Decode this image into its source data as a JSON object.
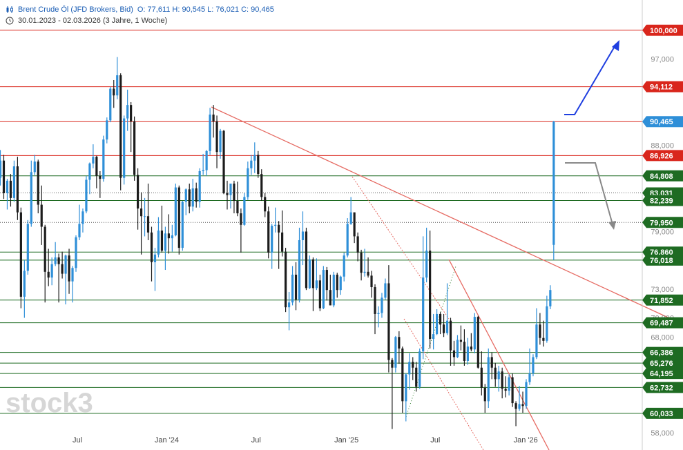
{
  "header": {
    "instrument": "Brent Crude Öl (JFD Brokers, Bid)",
    "ohlc": "O: 77,611   H: 90,545   L: 76,021   C: 90,465",
    "range": "30.01.2023 - 02.03.2026  (3 Jahre, 1 Woche)",
    "icons": [
      "candles-icon",
      "clock-icon"
    ]
  },
  "watermark": "stock3",
  "colors": {
    "up": "#2e8fd8",
    "down": "#1c1c1c",
    "resistance": "#d9261c",
    "support": "#1e6b22",
    "trendline": "#e66b63",
    "current": "#2e8fd8",
    "arrow_up": "#1f3fe0",
    "arrow_alt": "#777777"
  },
  "chart_data": {
    "type": "candlestick",
    "x_range": [
      "2023-01-30",
      "2026-03-02"
    ],
    "x_ticks": [
      "Jul",
      "Jan '24",
      "Jul",
      "Jan '25",
      "Jul",
      "Jan '26"
    ],
    "y_ticks": [
      "100,000",
      "97,000",
      "88,000",
      "79,000",
      "73,000",
      "70,000",
      "68,000",
      "58,000"
    ],
    "ylim": [
      56.5,
      102.0
    ],
    "price_levels": [
      {
        "label": "100,000",
        "value": 100.0,
        "kind": "resistance"
      },
      {
        "label": "94,112",
        "value": 94.112,
        "kind": "resistance"
      },
      {
        "label": "90,465",
        "value": 90.465,
        "kind": "current"
      },
      {
        "label": "86,926",
        "value": 86.926,
        "kind": "resistance"
      },
      {
        "label": "84,808",
        "value": 84.808,
        "kind": "support"
      },
      {
        "label": "83,031",
        "value": 83.031,
        "kind": "dotted"
      },
      {
        "label": "82,239",
        "value": 82.239,
        "kind": "support"
      },
      {
        "label": "79,950",
        "value": 79.95,
        "kind": "dotted"
      },
      {
        "label": "76,860",
        "value": 76.86,
        "kind": "support"
      },
      {
        "label": "76,018",
        "value": 76.018,
        "kind": "support"
      },
      {
        "label": "71,852",
        "value": 71.852,
        "kind": "support"
      },
      {
        "label": "69,487",
        "value": 69.487,
        "kind": "support"
      },
      {
        "label": "66,386",
        "value": 66.386,
        "kind": "support"
      },
      {
        "label": "65,276",
        "value": 65.276,
        "kind": "support"
      },
      {
        "label": "64,195",
        "value": 64.195,
        "kind": "support"
      },
      {
        "label": "62,732",
        "value": 62.732,
        "kind": "support"
      },
      {
        "label": "60,033",
        "value": 60.033,
        "kind": "support"
      }
    ],
    "candles": [
      [
        "2023-01-30",
        84.6,
        87.5,
        83.8,
        86.4
      ],
      [
        "2023-02-06",
        86.4,
        87.0,
        82.4,
        83.0
      ],
      [
        "2023-02-13",
        83.0,
        84.5,
        81.3,
        84.3
      ],
      [
        "2023-02-20",
        84.3,
        85.0,
        81.6,
        82.5
      ],
      [
        "2023-02-27",
        82.5,
        86.4,
        82.1,
        85.8
      ],
      [
        "2023-03-06",
        85.8,
        86.8,
        80.2,
        81.0
      ],
      [
        "2023-03-13",
        81.0,
        81.5,
        71.0,
        72.2
      ],
      [
        "2023-03-20",
        72.2,
        76.0,
        70.0,
        74.9
      ],
      [
        "2023-03-27",
        74.9,
        80.2,
        74.5,
        79.8
      ],
      [
        "2023-04-03",
        79.8,
        86.4,
        79.5,
        85.2
      ],
      [
        "2023-04-10",
        85.2,
        87.0,
        84.9,
        86.3
      ],
      [
        "2023-04-17",
        86.3,
        86.5,
        80.9,
        81.8
      ],
      [
        "2023-04-24",
        81.8,
        83.8,
        77.6,
        79.5
      ],
      [
        "2023-05-01",
        79.5,
        79.7,
        71.6,
        74.8
      ],
      [
        "2023-05-08",
        74.8,
        77.2,
        73.3,
        74.2
      ],
      [
        "2023-05-15",
        74.2,
        76.3,
        73.4,
        75.6
      ],
      [
        "2023-05-22",
        75.6,
        77.9,
        75.4,
        76.3
      ],
      [
        "2023-05-29",
        76.3,
        76.7,
        71.6,
        75.6
      ],
      [
        "2023-06-05",
        75.6,
        76.9,
        74.1,
        74.6
      ],
      [
        "2023-06-12",
        74.6,
        76.6,
        71.4,
        76.5
      ],
      [
        "2023-06-19",
        76.5,
        77.2,
        72.5,
        73.8
      ],
      [
        "2023-06-26",
        73.8,
        75.4,
        71.6,
        75.2
      ],
      [
        "2023-07-03",
        75.2,
        78.6,
        74.8,
        78.4
      ],
      [
        "2023-07-10",
        78.4,
        81.8,
        78.1,
        79.8
      ],
      [
        "2023-07-17",
        79.8,
        81.4,
        78.9,
        81.1
      ],
      [
        "2023-07-24",
        81.1,
        84.8,
        80.9,
        84.4
      ],
      [
        "2023-07-31",
        84.4,
        86.2,
        82.9,
        86.1
      ],
      [
        "2023-08-07",
        86.1,
        88.1,
        85.6,
        86.8
      ],
      [
        "2023-08-14",
        86.8,
        86.9,
        83.5,
        84.8
      ],
      [
        "2023-08-21",
        84.8,
        85.3,
        82.5,
        84.5
      ],
      [
        "2023-08-28",
        84.5,
        89.0,
        84.2,
        88.6
      ],
      [
        "2023-09-04",
        88.6,
        90.9,
        88.2,
        90.6
      ],
      [
        "2023-09-11",
        90.6,
        94.1,
        90.4,
        93.9
      ],
      [
        "2023-09-18",
        93.9,
        94.8,
        91.9,
        93.2
      ],
      [
        "2023-09-25",
        93.2,
        97.2,
        92.8,
        95.3
      ],
      [
        "2023-10-02",
        95.3,
        95.5,
        83.3,
        84.6
      ],
      [
        "2023-10-09",
        84.6,
        91.1,
        83.9,
        90.8
      ],
      [
        "2023-10-16",
        90.8,
        93.8,
        89.5,
        92.2
      ],
      [
        "2023-10-23",
        92.2,
        92.5,
        87.3,
        90.5
      ],
      [
        "2023-10-30",
        90.5,
        91.0,
        84.3,
        84.9
      ],
      [
        "2023-11-06",
        84.9,
        85.6,
        79.2,
        81.4
      ],
      [
        "2023-11-13",
        81.4,
        83.1,
        76.6,
        80.6
      ],
      [
        "2023-11-20",
        80.6,
        82.5,
        78.5,
        80.6
      ],
      [
        "2023-11-27",
        80.6,
        84.0,
        78.1,
        78.9
      ],
      [
        "2023-12-04",
        78.9,
        79.5,
        73.8,
        75.8
      ],
      [
        "2023-12-11",
        75.8,
        77.3,
        72.8,
        76.6
      ],
      [
        "2023-12-18",
        76.6,
        80.5,
        76.3,
        79.1
      ],
      [
        "2023-12-25",
        79.1,
        81.7,
        76.8,
        77.0
      ],
      [
        "2024-01-01",
        77.0,
        79.5,
        75.0,
        78.8
      ],
      [
        "2024-01-08",
        78.8,
        80.8,
        76.7,
        78.3
      ],
      [
        "2024-01-15",
        78.3,
        79.7,
        76.9,
        78.6
      ],
      [
        "2024-01-22",
        78.6,
        84.0,
        78.5,
        83.6
      ],
      [
        "2024-01-29",
        83.6,
        83.8,
        76.6,
        77.3
      ],
      [
        "2024-02-05",
        77.3,
        82.2,
        77.0,
        82.1
      ],
      [
        "2024-02-12",
        82.1,
        83.5,
        80.7,
        83.4
      ],
      [
        "2024-02-19",
        83.4,
        84.0,
        80.9,
        81.6
      ],
      [
        "2024-02-26",
        81.6,
        84.5,
        81.1,
        83.5
      ],
      [
        "2024-03-04",
        83.5,
        84.1,
        81.5,
        82.1
      ],
      [
        "2024-03-11",
        82.1,
        85.6,
        81.5,
        85.3
      ],
      [
        "2024-03-18",
        85.3,
        87.1,
        84.9,
        85.4
      ],
      [
        "2024-03-25",
        85.4,
        87.5,
        84.8,
        87.4
      ],
      [
        "2024-04-01",
        87.4,
        91.9,
        87.0,
        91.2
      ],
      [
        "2024-04-08",
        91.2,
        92.2,
        88.8,
        90.5
      ],
      [
        "2024-04-15",
        90.5,
        91.1,
        85.6,
        87.3
      ],
      [
        "2024-04-22",
        87.3,
        89.7,
        86.6,
        89.5
      ],
      [
        "2024-04-29",
        89.5,
        89.6,
        82.9,
        83.0
      ],
      [
        "2024-05-06",
        83.0,
        84.3,
        81.3,
        82.8
      ],
      [
        "2024-05-13",
        82.8,
        84.0,
        81.4,
        84.0
      ],
      [
        "2024-05-20",
        84.0,
        84.3,
        80.9,
        82.2
      ],
      [
        "2024-05-27",
        82.2,
        84.2,
        80.6,
        80.9
      ],
      [
        "2024-06-03",
        80.9,
        81.4,
        76.8,
        79.7
      ],
      [
        "2024-06-10",
        79.7,
        83.0,
        79.6,
        82.6
      ],
      [
        "2024-06-17",
        82.6,
        86.3,
        82.3,
        85.6
      ],
      [
        "2024-06-24",
        85.6,
        87.0,
        84.9,
        86.4
      ],
      [
        "2024-07-01",
        86.4,
        88.3,
        85.1,
        87.0
      ],
      [
        "2024-07-08",
        87.0,
        87.4,
        84.6,
        85.0
      ],
      [
        "2024-07-15",
        85.0,
        85.5,
        82.2,
        82.6
      ],
      [
        "2024-07-22",
        82.6,
        83.0,
        80.5,
        81.1
      ],
      [
        "2024-07-29",
        81.1,
        81.6,
        76.2,
        76.8
      ],
      [
        "2024-08-05",
        76.8,
        79.8,
        75.1,
        79.6
      ],
      [
        "2024-08-12",
        79.6,
        81.5,
        78.9,
        79.7
      ],
      [
        "2024-08-19",
        79.7,
        80.1,
        75.1,
        78.9
      ],
      [
        "2024-08-26",
        78.9,
        81.2,
        76.4,
        76.9
      ],
      [
        "2024-09-02",
        76.9,
        77.3,
        70.6,
        71.1
      ],
      [
        "2024-09-09",
        71.1,
        72.7,
        68.7,
        71.6
      ],
      [
        "2024-09-16",
        71.6,
        75.4,
        71.3,
        74.5
      ],
      [
        "2024-09-23",
        74.5,
        75.8,
        70.8,
        71.9
      ],
      [
        "2024-09-30",
        71.9,
        79.4,
        71.6,
        78.1
      ],
      [
        "2024-10-07",
        78.1,
        81.1,
        75.5,
        79.0
      ],
      [
        "2024-10-14",
        79.0,
        79.4,
        72.9,
        73.1
      ],
      [
        "2024-10-21",
        73.1,
        76.5,
        73.0,
        76.1
      ],
      [
        "2024-10-28",
        76.1,
        76.3,
        70.7,
        73.1
      ],
      [
        "2024-11-04",
        73.1,
        76.2,
        72.9,
        73.9
      ],
      [
        "2024-11-11",
        73.9,
        74.5,
        70.7,
        71.0
      ],
      [
        "2024-11-18",
        71.0,
        75.4,
        70.9,
        75.0
      ],
      [
        "2024-11-25",
        75.0,
        75.3,
        71.8,
        72.9
      ],
      [
        "2024-12-02",
        72.9,
        74.5,
        71.3,
        71.3
      ],
      [
        "2024-12-09",
        71.3,
        74.8,
        71.1,
        74.5
      ],
      [
        "2024-12-16",
        74.5,
        74.7,
        72.1,
        72.9
      ],
      [
        "2024-12-23",
        72.9,
        74.4,
        72.4,
        74.3
      ],
      [
        "2024-12-30",
        74.3,
        76.8,
        73.8,
        76.5
      ],
      [
        "2025-01-06",
        76.5,
        80.4,
        76.3,
        79.8
      ],
      [
        "2025-01-13",
        79.8,
        82.6,
        79.7,
        81.0
      ],
      [
        "2025-01-20",
        81.0,
        81.0,
        77.8,
        78.5
      ],
      [
        "2025-01-27",
        78.5,
        78.9,
        75.9,
        76.8
      ],
      [
        "2025-02-03",
        76.8,
        77.1,
        73.9,
        74.7
      ],
      [
        "2025-02-10",
        74.7,
        77.2,
        74.3,
        74.8
      ],
      [
        "2025-02-17",
        74.8,
        76.3,
        74.2,
        74.4
      ],
      [
        "2025-02-24",
        74.4,
        74.9,
        72.1,
        73.2
      ],
      [
        "2025-03-03",
        73.2,
        73.5,
        68.3,
        70.4
      ],
      [
        "2025-03-10",
        70.4,
        71.2,
        69.0,
        70.5
      ],
      [
        "2025-03-17",
        70.5,
        72.6,
        70.0,
        72.1
      ],
      [
        "2025-03-24",
        72.1,
        74.1,
        71.9,
        73.6
      ],
      [
        "2025-03-31",
        73.6,
        75.5,
        64.3,
        65.6
      ],
      [
        "2025-04-07",
        65.6,
        65.8,
        58.4,
        64.8
      ],
      [
        "2025-04-14",
        64.8,
        68.1,
        64.3,
        68.0
      ],
      [
        "2025-04-21",
        68.0,
        68.6,
        65.2,
        66.8
      ],
      [
        "2025-04-28",
        66.8,
        67.0,
        60.1,
        61.3
      ],
      [
        "2025-05-05",
        61.3,
        64.2,
        59.2,
        64.1
      ],
      [
        "2025-05-12",
        64.1,
        66.3,
        62.5,
        65.4
      ],
      [
        "2025-05-19",
        65.4,
        65.9,
        63.5,
        64.8
      ],
      [
        "2025-05-26",
        64.8,
        65.4,
        62.3,
        62.8
      ],
      [
        "2025-06-02",
        62.8,
        66.8,
        62.6,
        66.5
      ],
      [
        "2025-06-09",
        66.5,
        78.5,
        65.7,
        74.2
      ],
      [
        "2025-06-16",
        74.2,
        79.4,
        73.7,
        77.0
      ],
      [
        "2025-06-23",
        77.0,
        79.1,
        66.8,
        67.8
      ],
      [
        "2025-06-30",
        67.8,
        70.4,
        66.7,
        68.3
      ],
      [
        "2025-07-07",
        68.3,
        70.9,
        68.2,
        70.4
      ],
      [
        "2025-07-14",
        70.4,
        70.6,
        68.3,
        69.3
      ],
      [
        "2025-07-21",
        69.3,
        70.4,
        68.0,
        68.4
      ],
      [
        "2025-07-28",
        68.4,
        73.6,
        68.2,
        69.7
      ],
      [
        "2025-08-04",
        69.7,
        70.0,
        65.0,
        66.6
      ],
      [
        "2025-08-11",
        66.6,
        67.6,
        65.0,
        65.9
      ],
      [
        "2025-08-18",
        65.9,
        68.2,
        65.8,
        67.7
      ],
      [
        "2025-08-25",
        67.7,
        69.2,
        66.6,
        67.5
      ],
      [
        "2025-09-01",
        67.5,
        68.8,
        65.0,
        65.5
      ],
      [
        "2025-09-08",
        65.5,
        67.9,
        65.1,
        67.0
      ],
      [
        "2025-09-15",
        67.0,
        68.4,
        66.5,
        66.7
      ],
      [
        "2025-09-22",
        66.7,
        70.5,
        66.3,
        70.1
      ],
      [
        "2025-09-29",
        70.1,
        70.2,
        64.7,
        64.8
      ],
      [
        "2025-10-06",
        64.8,
        66.5,
        61.9,
        62.7
      ],
      [
        "2025-10-13",
        62.7,
        63.1,
        60.1,
        61.3
      ],
      [
        "2025-10-20",
        61.3,
        66.8,
        60.6,
        65.9
      ],
      [
        "2025-10-27",
        65.9,
        66.4,
        63.6,
        64.8
      ],
      [
        "2025-11-03",
        64.8,
        65.3,
        62.8,
        63.6
      ],
      [
        "2025-11-10",
        63.6,
        65.0,
        62.3,
        64.4
      ],
      [
        "2025-11-17",
        64.4,
        64.8,
        61.6,
        62.6
      ],
      [
        "2025-11-24",
        62.6,
        63.9,
        61.7,
        62.4
      ],
      [
        "2025-12-01",
        62.4,
        64.1,
        61.9,
        63.8
      ],
      [
        "2025-12-08",
        63.8,
        64.2,
        60.7,
        61.1
      ],
      [
        "2025-12-15",
        61.1,
        61.3,
        58.7,
        60.5
      ],
      [
        "2025-12-22",
        60.5,
        62.9,
        60.3,
        61.0
      ],
      [
        "2025-12-29",
        61.0,
        62.3,
        60.1,
        60.8
      ],
      [
        "2026-01-05",
        60.8,
        63.6,
        60.5,
        63.3
      ],
      [
        "2026-01-12",
        63.3,
        66.8,
        63.0,
        64.2
      ],
      [
        "2026-01-19",
        64.2,
        66.2,
        63.9,
        65.9
      ],
      [
        "2026-01-26",
        65.9,
        71.0,
        65.7,
        69.3
      ],
      [
        "2026-02-02",
        69.3,
        70.5,
        67.2,
        67.9
      ],
      [
        "2026-02-09",
        67.9,
        69.7,
        67.0,
        67.6
      ],
      [
        "2026-02-16",
        67.6,
        72.3,
        67.4,
        71.2
      ],
      [
        "2026-02-23",
        71.2,
        73.4,
        70.9,
        72.9
      ],
      [
        "2026-03-02",
        77.611,
        90.545,
        76.021,
        90.465
      ]
    ]
  }
}
